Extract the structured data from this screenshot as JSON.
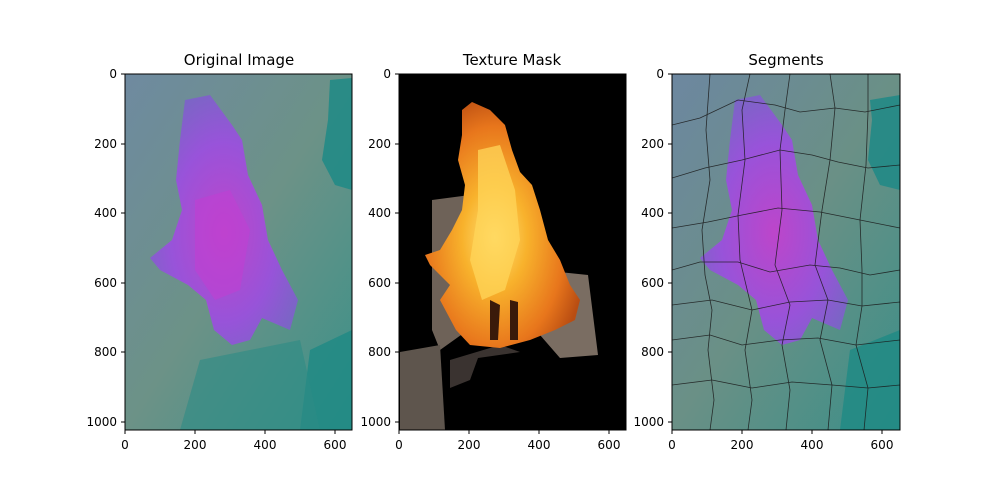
{
  "figure": {
    "panels": [
      {
        "title": "Original Image",
        "x_ticks": [
          "0",
          "200",
          "400",
          "600"
        ],
        "y_ticks": [
          "0",
          "200",
          "400",
          "600",
          "800",
          "1000"
        ],
        "colors": {
          "background": "#5e8f7f",
          "plume": "#a04be0",
          "plume_core": "#c43fd0",
          "teal": "#1e8a85"
        }
      },
      {
        "title": "Texture Mask",
        "x_ticks": [
          "0",
          "200",
          "400",
          "600"
        ],
        "y_ticks": [
          "0",
          "200",
          "400",
          "600",
          "800",
          "1000"
        ],
        "colors": {
          "background": "#000000",
          "fire_outer": "#e8701a",
          "fire_mid": "#f4a424",
          "fire_core": "#ffd85a",
          "structure": "#6e6258"
        }
      },
      {
        "title": "Segments",
        "x_ticks": [
          "0",
          "200",
          "400",
          "600"
        ],
        "y_ticks": [
          "0",
          "200",
          "400",
          "600",
          "800",
          "1000"
        ],
        "colors": {
          "background": "#5e8f7f",
          "plume": "#a04be0",
          "boundary": "#1a1a1a"
        }
      }
    ]
  }
}
